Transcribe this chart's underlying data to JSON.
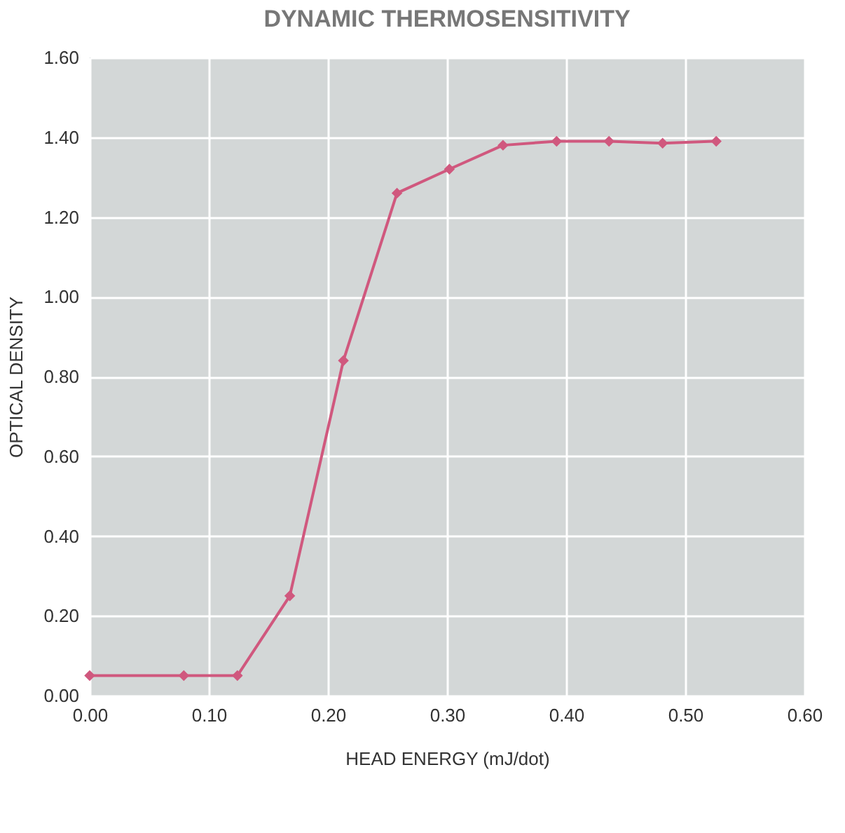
{
  "chart_data": {
    "type": "line",
    "title": "DYNAMIC THERMOSENSITIVITY",
    "xlabel": "HEAD ENERGY (mJ/dot)",
    "ylabel": "OPTICAL DENSITY",
    "x": [
      0,
      0.079,
      0.124,
      0.168,
      0.213,
      0.258,
      0.302,
      0.347,
      0.392,
      0.436,
      0.481,
      0.526
    ],
    "series": [
      {
        "color": "#d0587e",
        "values": [
          0.05,
          0.05,
          0.05,
          0.25,
          0.84,
          1.26,
          1.32,
          1.38,
          1.39,
          1.39,
          1.385,
          1.39
        ]
      }
    ],
    "xlim": [
      0,
      0.6
    ],
    "ylim": [
      0,
      1.6
    ],
    "xticks": [
      {
        "value": 0,
        "label": "0.00"
      },
      {
        "value": 0.1,
        "label": "0.10"
      },
      {
        "value": 0.2,
        "label": "0.20"
      },
      {
        "value": 0.3,
        "label": "0.30"
      },
      {
        "value": 0.4,
        "label": "0.40"
      },
      {
        "value": 0.5,
        "label": "0.50"
      },
      {
        "value": 0.6,
        "label": "0.60"
      }
    ],
    "yticks": [
      {
        "value": 0,
        "label": "0.00"
      },
      {
        "value": 0.2,
        "label": "0.20"
      },
      {
        "value": 0.4,
        "label": "0.40"
      },
      {
        "value": 0.6,
        "label": "0.60"
      },
      {
        "value": 0.8,
        "label": "0.80"
      },
      {
        "value": 1.0,
        "label": "1.00"
      },
      {
        "value": 1.2,
        "label": "1.20"
      },
      {
        "value": 1.4,
        "label": "1.40"
      },
      {
        "value": 1.6,
        "label": "1.60"
      }
    ],
    "grid": true,
    "marker": "diamond",
    "line_style": "solid"
  }
}
